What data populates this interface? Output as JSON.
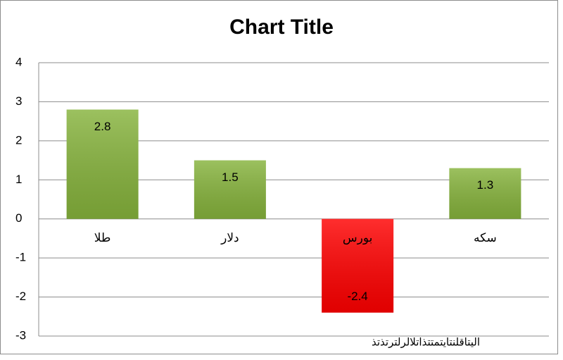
{
  "chart_data": {
    "type": "bar",
    "title": "Chart Title",
    "categories": [
      "طلا",
      "دلار",
      "بورس",
      "سکه"
    ],
    "values": [
      2.8,
      1.5,
      -2.4,
      1.3
    ],
    "colors": [
      "#86b33c",
      "#86b33c",
      "#ff0000",
      "#86b33c"
    ],
    "ylim": [
      -3,
      4
    ],
    "yticks": [
      -3,
      -2,
      -1,
      0,
      1,
      2,
      3,
      4
    ],
    "grid": true,
    "annotation": "اليتاقلنتايتمتتذاتلالرلترتذتذ"
  }
}
